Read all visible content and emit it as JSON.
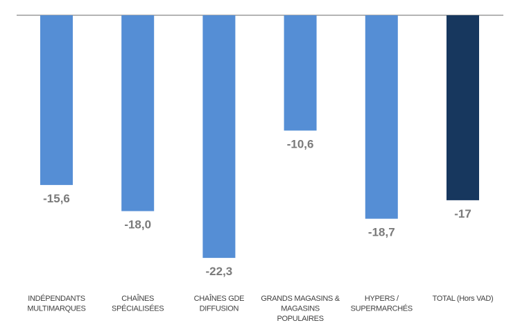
{
  "chart_data": {
    "type": "bar",
    "categories": [
      [
        "INDÉPENDANTS",
        "MULTIMARQUES"
      ],
      [
        "CHAÎNES",
        "SPÉCIALISÉES"
      ],
      [
        "CHAÎNES GDE",
        "DIFFUSION"
      ],
      [
        "GRANDS MAGASINS &",
        "MAGASINS",
        "POPULAIRES"
      ],
      [
        "HYPERS /",
        "SUPERMARCHÉS"
      ],
      [
        "TOTAL (Hors VAD)"
      ]
    ],
    "values": [
      -15.6,
      -18.0,
      -22.3,
      -10.6,
      -18.7,
      -17
    ],
    "value_labels": [
      "-15,6",
      "-18,0",
      "-22,3",
      "-10,6",
      "-18,7",
      "-17"
    ],
    "ylim": [
      -25,
      0
    ],
    "grid": false,
    "legend": "none",
    "colors": {
      "bar": "#558ed5",
      "total_bar": "#17375e",
      "axis": "#868686",
      "value_label": "#7a7a7a",
      "category_label": "#404040"
    }
  }
}
